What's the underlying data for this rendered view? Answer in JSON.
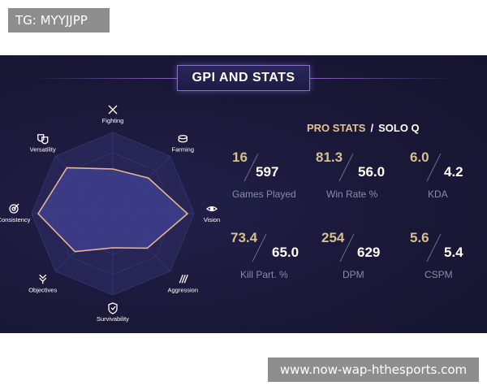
{
  "watermark_tg": "TG: MYYJJPP",
  "watermark_url": "www.now-wap-hthesports.com",
  "panel": {
    "title": "GPI AND STATS",
    "pro_stats_label": "PRO STATS",
    "separator": "/",
    "queue_label": "SOLO Q"
  },
  "radar": {
    "axes": [
      {
        "label": "Fighting",
        "icon": "crossed-swords-icon",
        "level": 0.55
      },
      {
        "label": "Farming",
        "icon": "coins-icon",
        "level": 0.62
      },
      {
        "label": "Vision",
        "icon": "eye-icon",
        "level": 0.92
      },
      {
        "label": "Aggression",
        "icon": "claw-marks-icon",
        "level": 0.6
      },
      {
        "label": "Survivability",
        "icon": "shield-icon",
        "level": 0.42
      },
      {
        "label": "Objectives",
        "icon": "objective-icon",
        "level": 0.66
      },
      {
        "label": "Consistency",
        "icon": "target-icon",
        "level": 0.92
      },
      {
        "label": "Versatility",
        "icon": "masks-icon",
        "level": 0.8
      }
    ],
    "colors": {
      "fill": "#3e3f8c",
      "outline": "#e8b58a"
    }
  },
  "stats": [
    {
      "pro": "16",
      "solo": "597",
      "label": "Games Played"
    },
    {
      "pro": "81.3",
      "solo": "56.0",
      "label": "Win Rate %"
    },
    {
      "pro": "6.0",
      "solo": "4.2",
      "label": "KDA"
    },
    {
      "pro": "73.4",
      "solo": "65.0",
      "label": "Kill Part. %"
    },
    {
      "pro": "254",
      "solo": "629",
      "label": "DPM"
    },
    {
      "pro": "5.6",
      "solo": "5.4",
      "label": "CSPM"
    }
  ]
}
